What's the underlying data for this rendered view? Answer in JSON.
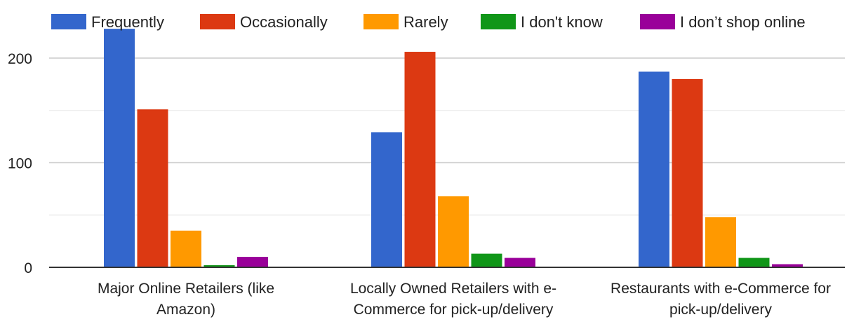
{
  "chart_data": {
    "type": "bar",
    "categories": [
      "Major Online Retailers (like Amazon)",
      "Locally Owned Retailers with e-Commerce for pick-up/delivery",
      "Restaurants with e-Commerce for pick-up/delivery"
    ],
    "category_label_lines": [
      [
        "Major Online Retailers (like",
        "Amazon)"
      ],
      [
        "Locally Owned Retailers with e-",
        "Commerce for pick-up/delivery"
      ],
      [
        "Restaurants with e-Commerce for",
        "pick-up/delivery"
      ]
    ],
    "series": [
      {
        "name": "Frequently",
        "color": "#3366cc",
        "values": [
          228,
          129,
          187
        ]
      },
      {
        "name": "Occasionally",
        "color": "#dc3912",
        "values": [
          151,
          206,
          180
        ]
      },
      {
        "name": "Rarely",
        "color": "#ff9900",
        "values": [
          35,
          68,
          48
        ]
      },
      {
        "name": "I don't know",
        "color": "#109618",
        "values": [
          2,
          13,
          9
        ]
      },
      {
        "name": "I don’t shop online",
        "color": "#990099",
        "values": [
          10,
          9,
          3
        ]
      }
    ],
    "y_ticks": [
      "0",
      "100",
      "200"
    ],
    "ylim": [
      0,
      230
    ],
    "title": "",
    "xlabel": "",
    "ylabel": "",
    "grid": true,
    "legend_position": "top"
  }
}
